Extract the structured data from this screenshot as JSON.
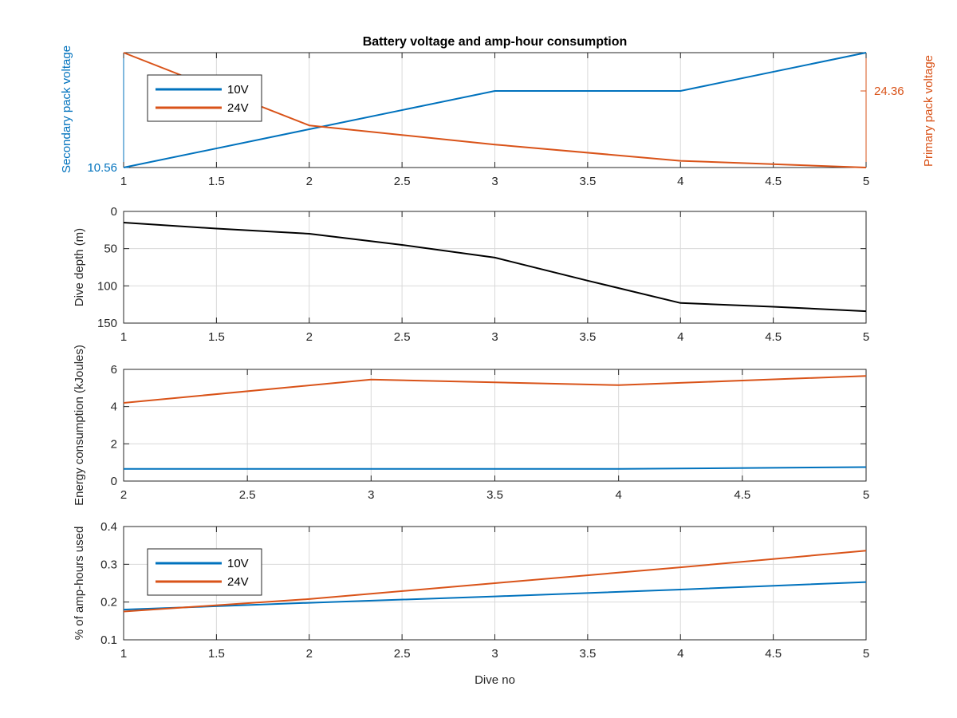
{
  "colors": {
    "blue": "#0072BD",
    "orange": "#D95319",
    "black": "#000000",
    "axis": "#262626",
    "grid": "#d9d9d9"
  },
  "chart_data": [
    {
      "id": "voltage",
      "type": "line",
      "title": "Battery voltage and amp-hour consumption",
      "xlabel": "",
      "xlim": [
        1,
        5
      ],
      "xticks": [
        1,
        1.5,
        2,
        2.5,
        3,
        3.5,
        4,
        4.5,
        5
      ],
      "xtick_labels": [
        "1",
        "1.5",
        "2",
        "2.5",
        "3",
        "3.5",
        "4",
        "4.5",
        "5"
      ],
      "grid": true,
      "legend": {
        "placement": "top-left",
        "entries": [
          "10V",
          "24V"
        ]
      },
      "y_left": {
        "label": "Secondary pack voltage",
        "ylim": [
          10.56,
          10.62
        ],
        "ticks": [
          10.56
        ],
        "tick_labels": [
          "10.56"
        ],
        "color": "#0072BD"
      },
      "y_right": {
        "label": "Primary pack voltage",
        "ylim": [
          24.32,
          24.38
        ],
        "ticks": [
          24.36
        ],
        "tick_labels": [
          "24.36"
        ],
        "color": "#D95319"
      },
      "series": [
        {
          "name": "10V",
          "axis": "left",
          "color": "#0072BD",
          "x": [
            1,
            2,
            3,
            4,
            5
          ],
          "y": [
            10.56,
            10.58,
            10.6,
            10.6,
            10.62
          ]
        },
        {
          "name": "24V",
          "axis": "right",
          "color": "#D95319",
          "x": [
            1,
            2,
            3,
            4,
            5
          ],
          "y": [
            24.38,
            24.342,
            24.332,
            24.3235,
            24.32
          ]
        }
      ]
    },
    {
      "id": "depth",
      "type": "line",
      "xlabel": "",
      "ylabel": "Dive depth (m)",
      "xlim": [
        1,
        5
      ],
      "xticks": [
        1,
        1.5,
        2,
        2.5,
        3,
        3.5,
        4,
        4.5,
        5
      ],
      "xtick_labels": [
        "1",
        "1.5",
        "2",
        "2.5",
        "3",
        "3.5",
        "4",
        "4.5",
        "5"
      ],
      "ylim": [
        0,
        150
      ],
      "y_reversed": true,
      "yticks": [
        0,
        50,
        100,
        150
      ],
      "ytick_labels": [
        "0",
        "50",
        "100",
        "150"
      ],
      "grid": true,
      "series": [
        {
          "color": "#000000",
          "x": [
            1,
            1.5,
            2,
            2.5,
            3,
            3.5,
            4,
            4.5,
            5
          ],
          "y": [
            15,
            23,
            30,
            45,
            62,
            93,
            123,
            128,
            134
          ]
        }
      ]
    },
    {
      "id": "energy",
      "type": "line",
      "xlabel": "",
      "ylabel": "Energy consumption (kJoules)",
      "xlim": [
        2,
        5
      ],
      "xticks": [
        2,
        2.5,
        3,
        3.5,
        4,
        4.5,
        5
      ],
      "xtick_labels": [
        "2",
        "2.5",
        "3",
        "3.5",
        "4",
        "4.5",
        "5"
      ],
      "ylim": [
        0,
        6
      ],
      "yticks": [
        0,
        2,
        4,
        6
      ],
      "ytick_labels": [
        "0",
        "2",
        "4",
        "6"
      ],
      "grid": true,
      "series": [
        {
          "color": "#D95319",
          "x": [
            2,
            3,
            3.5,
            4,
            4.5,
            5
          ],
          "y": [
            4.2,
            5.45,
            5.3,
            5.15,
            5.4,
            5.65
          ]
        },
        {
          "color": "#0072BD",
          "x": [
            2,
            3,
            4,
            5
          ],
          "y": [
            0.65,
            0.65,
            0.65,
            0.75
          ]
        }
      ]
    },
    {
      "id": "amphours",
      "type": "line",
      "xlabel": "Dive no",
      "ylabel": "% of amp-hours used",
      "xlim": [
        1,
        5
      ],
      "xticks": [
        1,
        1.5,
        2,
        2.5,
        3,
        3.5,
        4,
        4.5,
        5
      ],
      "xtick_labels": [
        "1",
        "1.5",
        "2",
        "2.5",
        "3",
        "3.5",
        "4",
        "4.5",
        "5"
      ],
      "ylim": [
        0.1,
        0.4
      ],
      "yticks": [
        0.1,
        0.2,
        0.3,
        0.4
      ],
      "ytick_labels": [
        "0.1",
        "0.2",
        "0.3",
        "0.4"
      ],
      "grid": true,
      "legend": {
        "placement": "top-left",
        "entries": [
          "10V",
          "24V"
        ]
      },
      "series": [
        {
          "name": "10V",
          "color": "#0072BD",
          "x": [
            1,
            2,
            3,
            4,
            5
          ],
          "y": [
            0.18,
            0.198,
            0.215,
            0.233,
            0.253
          ]
        },
        {
          "name": "24V",
          "color": "#D95319",
          "x": [
            1,
            2,
            3,
            4,
            5
          ],
          "y": [
            0.175,
            0.208,
            0.25,
            0.292,
            0.336
          ]
        }
      ]
    }
  ]
}
